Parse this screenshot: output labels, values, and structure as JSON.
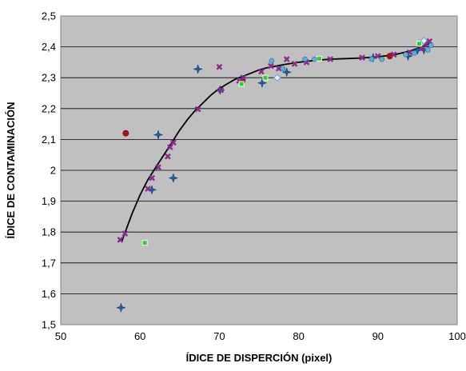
{
  "chart_data": {
    "type": "scatter",
    "title": "",
    "xlabel": "ÍDICE DE DISPERCIÓN (pixel)",
    "ylabel": "ÍDICE DE CONTAMINACIÓN",
    "xlim": [
      50,
      100
    ],
    "ylim": [
      1.5,
      2.5
    ],
    "x_ticks": [
      "50",
      "60",
      "70",
      "80",
      "90",
      "100"
    ],
    "y_ticks": [
      "1,5",
      "1,6",
      "1,7",
      "1,8",
      "1,9",
      "2",
      "2,1",
      "2,2",
      "2,3",
      "2,4",
      "2,5"
    ],
    "grid": "horizontal",
    "legend": "none",
    "plot_background": "#c0c0c0",
    "series": [
      {
        "marker": "circle",
        "color": "#aa1111",
        "points": [
          [
            58.2,
            2.12
          ],
          [
            72.9,
            2.29
          ],
          [
            91.5,
            2.37
          ]
        ]
      },
      {
        "marker": "star",
        "color": "#1a5fa8",
        "points": [
          [
            57.6,
            1.555
          ],
          [
            61.5,
            1.937
          ],
          [
            62.3,
            2.115
          ],
          [
            64.2,
            1.975
          ],
          [
            67.3,
            2.328
          ],
          [
            70.1,
            2.26
          ],
          [
            75.4,
            2.283
          ],
          [
            78.5,
            2.318
          ],
          [
            89.4,
            2.365
          ],
          [
            93.8,
            2.37
          ],
          [
            95.0,
            2.39
          ],
          [
            95.8,
            2.39
          ]
        ]
      },
      {
        "marker": "x",
        "color": "#8a2a8a",
        "points": [
          [
            57.5,
            1.775
          ],
          [
            58.1,
            1.795
          ],
          [
            61.0,
            1.94
          ],
          [
            61.5,
            1.975
          ],
          [
            62.3,
            2.01
          ],
          [
            63.5,
            2.045
          ],
          [
            63.8,
            2.075
          ],
          [
            64.2,
            2.09
          ],
          [
            67.3,
            2.198
          ],
          [
            70.0,
            2.335
          ],
          [
            70.2,
            2.26
          ],
          [
            72.5,
            2.29
          ],
          [
            73.0,
            2.3
          ],
          [
            75.3,
            2.32
          ],
          [
            76.5,
            2.338
          ],
          [
            77.5,
            2.33
          ],
          [
            78.5,
            2.36
          ],
          [
            79.5,
            2.345
          ],
          [
            81.0,
            2.35
          ],
          [
            84.0,
            2.36
          ],
          [
            88.0,
            2.365
          ],
          [
            90.0,
            2.37
          ],
          [
            92.0,
            2.375
          ],
          [
            94.0,
            2.382
          ],
          [
            95.5,
            2.395
          ],
          [
            96.0,
            2.41
          ],
          [
            96.5,
            2.418
          ]
        ]
      },
      {
        "marker": "square",
        "color": "#33cc33",
        "points": [
          [
            60.6,
            1.765
          ],
          [
            72.8,
            2.28
          ],
          [
            75.8,
            2.3
          ],
          [
            82.6,
            2.362
          ],
          [
            95.2,
            2.41
          ]
        ]
      },
      {
        "marker": "diamond",
        "color": "#e8f0ff",
        "points": [
          [
            77.3,
            2.3
          ],
          [
            95.8,
            2.42
          ]
        ]
      },
      {
        "marker": "dot",
        "color": "#5ab0d8",
        "points": [
          [
            76.6,
            2.355
          ],
          [
            78.0,
            2.33
          ],
          [
            80.8,
            2.36
          ],
          [
            82.0,
            2.36
          ],
          [
            89.2,
            2.36
          ],
          [
            90.5,
            2.36
          ],
          [
            93.5,
            2.375
          ],
          [
            94.6,
            2.38
          ],
          [
            96.3,
            2.39
          ],
          [
            96.7,
            2.405
          ]
        ]
      }
    ],
    "trendline": {
      "color": "#000000",
      "points": [
        [
          57.7,
          1.77
        ],
        [
          59.0,
          1.86
        ],
        [
          60.0,
          1.92
        ],
        [
          61.0,
          1.97
        ],
        [
          62.0,
          2.01
        ],
        [
          63.0,
          2.05
        ],
        [
          64.0,
          2.09
        ],
        [
          65.0,
          2.13
        ],
        [
          66.0,
          2.165
        ],
        [
          67.0,
          2.195
        ],
        [
          68.0,
          2.22
        ],
        [
          69.0,
          2.245
        ],
        [
          70.0,
          2.265
        ],
        [
          71.0,
          2.28
        ],
        [
          72.0,
          2.295
        ],
        [
          73.0,
          2.305
        ],
        [
          74.0,
          2.315
        ],
        [
          75.0,
          2.325
        ],
        [
          76.0,
          2.332
        ],
        [
          78.0,
          2.342
        ],
        [
          80.0,
          2.35
        ],
        [
          82.0,
          2.356
        ],
        [
          84.0,
          2.36
        ],
        [
          86.0,
          2.362
        ],
        [
          88.0,
          2.364
        ],
        [
          90.0,
          2.368
        ],
        [
          92.0,
          2.374
        ],
        [
          94.0,
          2.386
        ],
        [
          95.0,
          2.395
        ],
        [
          96.0,
          2.405
        ],
        [
          96.5,
          2.412
        ]
      ]
    }
  }
}
